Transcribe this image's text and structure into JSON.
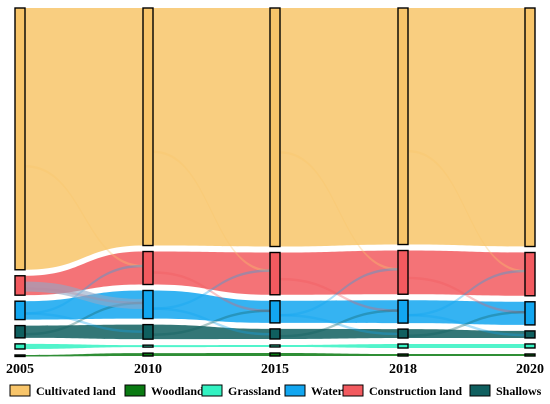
{
  "chart_data": {
    "type": "sankey",
    "years": [
      "2005",
      "2010",
      "2015",
      "2018",
      "2020"
    ],
    "categories": [
      {
        "key": "cultivated",
        "name": "Cultivated land",
        "color": "#F8C56A"
      },
      {
        "key": "woodland",
        "name": "Woodland",
        "color": "#0A7A12"
      },
      {
        "key": "grassland",
        "name": "Grassland",
        "color": "#33F2C2"
      },
      {
        "key": "water",
        "name": "Water",
        "color": "#12A6F0"
      },
      {
        "key": "construction",
        "name": "Construction land",
        "color": "#F25A5F"
      },
      {
        "key": "shallows",
        "name": "Shallows",
        "color": "#0F5F5F"
      }
    ],
    "node_order": [
      "cultivated",
      "construction",
      "water",
      "shallows",
      "grassland",
      "woodland"
    ],
    "relative_area": {
      "2005": {
        "cultivated": 256,
        "construction": 19,
        "water": 18,
        "shallows": 12,
        "grassland": 5,
        "woodland": 1
      },
      "2010": {
        "cultivated": 245,
        "construction": 34,
        "water": 29,
        "shallows": 15,
        "grassland": 2,
        "woodland": 3
      },
      "2015": {
        "cultivated": 237,
        "construction": 42,
        "water": 22,
        "shallows": 10,
        "grassland": 2,
        "woodland": 3
      },
      "2018": {
        "cultivated": 238,
        "construction": 44,
        "water": 23,
        "shallows": 9,
        "grassland": 4,
        "woodland": 2
      },
      "2020": {
        "cultivated": 237,
        "construction": 43,
        "water": 23,
        "shallows": 7,
        "grassland": 4,
        "woodland": 2
      }
    },
    "legend_position": "bottom"
  }
}
